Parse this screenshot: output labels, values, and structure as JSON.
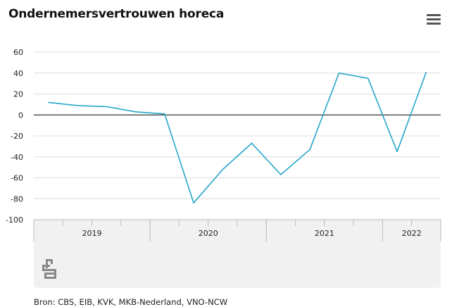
{
  "header": {
    "title": "Ondernemersvertrouwen horeca",
    "menu_icon": "hamburger-menu-icon"
  },
  "footer": {
    "source": "Bron: CBS, EIB, KVK, MKB-Nederland, VNO-NCW",
    "logo_icon": "cbs-logo-icon"
  },
  "colors": {
    "line": "#26a7cb",
    "grid": "#dddddd",
    "zero": "#333333",
    "panel": "#f1f1f1"
  },
  "chart_data": {
    "type": "line",
    "title": "Ondernemersvertrouwen horeca",
    "xlabel": "",
    "ylabel": "",
    "ylim": [
      -100,
      60
    ],
    "yticks": [
      60,
      40,
      20,
      0,
      -20,
      -40,
      -60,
      -80,
      -100
    ],
    "grid": true,
    "categories": [
      "2019 K1",
      "2019 K2",
      "2019 K3",
      "2019 K4",
      "2020 K1",
      "2020 K2",
      "2020 K3",
      "2020 K4",
      "2021 K1",
      "2021 K2",
      "2021 K3",
      "2021 K4",
      "2022 K1",
      "2022 K2"
    ],
    "years": [
      {
        "label": "2019",
        "quarters": 4
      },
      {
        "label": "2020",
        "quarters": 4
      },
      {
        "label": "2021",
        "quarters": 4
      },
      {
        "label": "2022",
        "quarters": 2
      }
    ],
    "series": [
      {
        "values": [
          12,
          9,
          8,
          3,
          1,
          -84,
          -52,
          -27,
          -57,
          -33,
          40,
          35,
          -35,
          41
        ]
      }
    ]
  }
}
